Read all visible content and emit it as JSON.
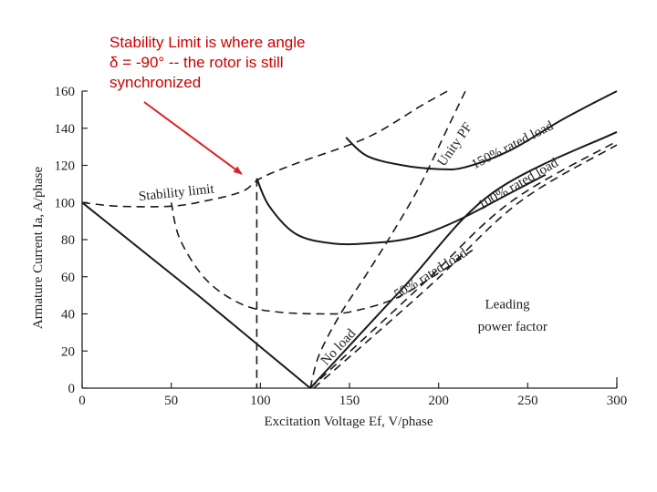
{
  "annotation": {
    "lines": [
      "Stability Limit is where angle",
      "δ = -90° -- the rotor is still",
      "synchronized"
    ],
    "arrow_color": "#dd2222"
  },
  "chart_data": {
    "type": "line",
    "xlabel": "Excitation Voltage Ef, V/phase",
    "ylabel": "Armature Current Ia, A/phase",
    "xlim": [
      0,
      300
    ],
    "ylim": [
      0,
      160
    ],
    "x_ticks": [
      0,
      50,
      100,
      150,
      200,
      250,
      300
    ],
    "y_ticks": [
      0,
      20,
      40,
      60,
      80,
      100,
      120,
      140,
      160
    ],
    "x_tick_labels": [
      "0",
      "50",
      "100",
      "150",
      "200",
      "250",
      "300"
    ],
    "y_tick_labels": [
      "0",
      "20",
      "40",
      "60",
      "80",
      "100",
      "120",
      "140",
      "160"
    ],
    "grid": false,
    "series": [
      {
        "name": "",
        "style": "solid",
        "points": [
          [
            0,
            100
          ],
          [
            65,
            50
          ],
          [
            128,
            0
          ]
        ]
      },
      {
        "name": "No load",
        "style": "solid",
        "points": [
          [
            128,
            0
          ],
          [
            180,
            54
          ],
          [
            230,
            105
          ],
          [
            300,
            138
          ]
        ]
      },
      {
        "name": "",
        "style": "dashed",
        "points": [
          [
            128,
            0
          ],
          [
            190,
            55
          ],
          [
            240,
            100
          ],
          [
            300,
            133
          ]
        ]
      },
      {
        "name": "",
        "style": "dashed",
        "points": [
          [
            130,
            0
          ],
          [
            195,
            55
          ],
          [
            245,
            100
          ],
          [
            300,
            131
          ]
        ]
      },
      {
        "name": "Stability limit",
        "style": "dashed",
        "points": [
          [
            0,
            100
          ],
          [
            20,
            98
          ],
          [
            50,
            98
          ],
          [
            70,
            101
          ],
          [
            90,
            106
          ],
          [
            100,
            113
          ],
          [
            120,
            121
          ],
          [
            160,
            135
          ],
          [
            190,
            152
          ],
          [
            205,
            160
          ]
        ]
      },
      {
        "name": "Unity PF",
        "style": "dashed",
        "points": [
          [
            128,
            0
          ],
          [
            133,
            18
          ],
          [
            145,
            40
          ],
          [
            160,
            62
          ],
          [
            175,
            85
          ],
          [
            190,
            110
          ],
          [
            205,
            140
          ],
          [
            215,
            160
          ]
        ]
      },
      {
        "name": "50% rated load",
        "style": "dashed",
        "points": [
          [
            50,
            100
          ],
          [
            55,
            80
          ],
          [
            70,
            58
          ],
          [
            90,
            45
          ],
          [
            110,
            41
          ],
          [
            135,
            40
          ],
          [
            150,
            41
          ],
          [
            175,
            48
          ],
          [
            200,
            62
          ],
          [
            220,
            75
          ]
        ]
      },
      {
        "name": "100% rated load",
        "style": "solid",
        "points": [
          [
            98,
            113
          ],
          [
            105,
            98
          ],
          [
            120,
            83
          ],
          [
            140,
            78
          ],
          [
            160,
            78
          ],
          [
            185,
            81
          ],
          [
            210,
            90
          ],
          [
            240,
            105
          ],
          [
            260,
            115
          ]
        ]
      },
      {
        "name": "150% rated load",
        "style": "solid",
        "points": [
          [
            148,
            135
          ],
          [
            160,
            125
          ],
          [
            180,
            120
          ],
          [
            200,
            118
          ],
          [
            215,
            119
          ],
          [
            240,
            128
          ],
          [
            270,
            145
          ],
          [
            300,
            160
          ]
        ]
      },
      {
        "name": "",
        "style": "dashed",
        "points": [
          [
            98,
            113
          ],
          [
            98,
            0
          ]
        ]
      }
    ],
    "annotations": [
      {
        "text": "Stability limit",
        "x": 32,
        "y": 101,
        "rotate": -6
      },
      {
        "text": "Unity PF",
        "x": 203,
        "y": 119,
        "rotate": -55
      },
      {
        "text": "150% rated load",
        "x": 220,
        "y": 118,
        "rotate": -27
      },
      {
        "text": "100% rated load",
        "x": 224,
        "y": 96,
        "rotate": -30
      },
      {
        "text": "50% rated load",
        "x": 177,
        "y": 48,
        "rotate": -32
      },
      {
        "text": "No load",
        "x": 137,
        "y": 12,
        "rotate": -47
      },
      {
        "text": "Leading",
        "x": 226,
        "y": 43,
        "rotate": 0
      },
      {
        "text": "power factor",
        "x": 222,
        "y": 31,
        "rotate": 0
      }
    ]
  }
}
